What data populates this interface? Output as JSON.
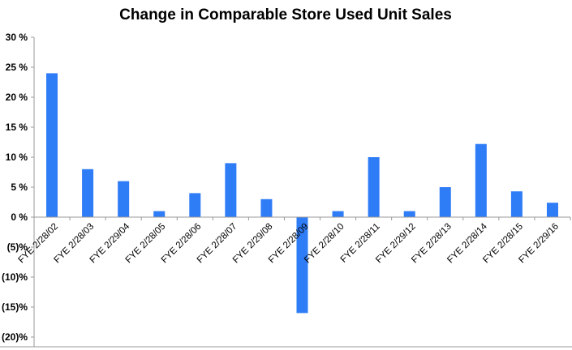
{
  "chart_data": {
    "type": "bar",
    "title": "Change in Comparable Store Used Unit Sales",
    "xlabel": "",
    "ylabel": "",
    "categories": [
      "FYE 2/28/02",
      "FYE 2/28/03",
      "FYE 2/29/04",
      "FYE 2/28/05",
      "FYE 2/28/06",
      "FYE 2/28/07",
      "FYE 2/29/08",
      "FYE 2/28/09",
      "FYE 2/28/10",
      "FYE 2/28/11",
      "FYE 2/29/12",
      "FYE 2/28/13",
      "FYE 2/28/14",
      "FYE 2/28/15",
      "FYE 2/29/16"
    ],
    "values": [
      24,
      8,
      6,
      1,
      4,
      9,
      3,
      -16,
      1,
      10,
      1,
      5,
      12.2,
      4.3,
      2.4
    ],
    "ylim": [
      -20,
      30
    ],
    "yticks": [
      30,
      25,
      20,
      15,
      10,
      5,
      0,
      -5,
      -10,
      -15,
      -20
    ],
    "ytick_labels": [
      "30 %",
      "25 %",
      "20 %",
      "15 %",
      "10 %",
      "5 %",
      "0 %",
      "(5)%",
      "(10)%",
      "(15)%",
      "(20)%"
    ],
    "grid": false,
    "legend": "none",
    "bar_color": "#2e7cf6"
  }
}
